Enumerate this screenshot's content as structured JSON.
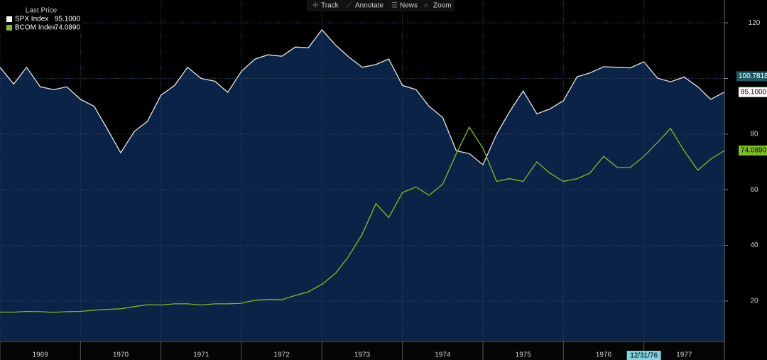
{
  "chart_data": {
    "type": "line",
    "legend_title": "Last Price",
    "toolbar": [
      "Track",
      "Annotate",
      "News",
      "Zoom"
    ],
    "x": [
      1969,
      1969.17,
      1969.33,
      1969.5,
      1969.67,
      1969.83,
      1970,
      1970.17,
      1970.33,
      1970.5,
      1970.67,
      1970.83,
      1971,
      1971.17,
      1971.33,
      1971.5,
      1971.67,
      1971.83,
      1972,
      1972.17,
      1972.33,
      1972.5,
      1972.67,
      1972.83,
      1973,
      1973.17,
      1973.33,
      1973.5,
      1973.67,
      1973.83,
      1974,
      1974.17,
      1974.33,
      1974.5,
      1974.67,
      1974.83,
      1975,
      1975.17,
      1975.33,
      1975.5,
      1975.67,
      1975.83,
      1976,
      1976.17,
      1976.33,
      1976.5,
      1976.67,
      1976.83,
      1977,
      1977.17,
      1977.33,
      1977.5,
      1977.67,
      1977.83,
      1978
    ],
    "xlim": [
      1969,
      1978
    ],
    "xticks": [
      1969,
      1970,
      1971,
      1972,
      1973,
      1974,
      1975,
      1976,
      1977
    ],
    "ylim": [
      5.7,
      128.2
    ],
    "yticks": [
      20,
      40,
      60,
      80,
      100,
      120
    ],
    "grid": true,
    "series": [
      {
        "name": "SPX Index",
        "color": "#e6e6e6",
        "fill": "#0b2346",
        "last_label": "95.1000",
        "values": [
          104,
          98,
          104,
          97,
          96,
          97,
          92.5,
          90,
          82,
          73.3,
          81,
          84.5,
          94,
          97.5,
          104,
          100,
          99,
          95,
          102.6,
          107,
          108.5,
          108,
          111.3,
          111,
          117.5,
          112,
          107.8,
          104,
          105,
          107,
          97.5,
          96,
          90,
          86,
          74,
          73,
          69,
          80,
          88,
          95.5,
          87.3,
          89,
          92,
          100.6,
          102,
          104.2,
          104,
          103.8,
          106,
          100.1,
          98.8,
          100.5,
          97,
          92.5,
          95.1
        ]
      },
      {
        "name": "BCOM Index",
        "color": "#7fbf1f",
        "last_label": "74.0890",
        "values": [
          16,
          16,
          16.3,
          16.2,
          15.9,
          16.2,
          16.3,
          16.7,
          17,
          17.2,
          18,
          18.7,
          18.6,
          19,
          19,
          18.6,
          19,
          19,
          19.2,
          20.3,
          20.6,
          20.5,
          22,
          23.3,
          26,
          30,
          36,
          44,
          55,
          50,
          59,
          61,
          58,
          62,
          73,
          82.5,
          75,
          63,
          64,
          63,
          70,
          66,
          63,
          64,
          66,
          72,
          68,
          68,
          72,
          77,
          82,
          74,
          67,
          71,
          74.089
        ]
      }
    ],
    "annotations": [
      {
        "text": "100.7818",
        "value": 100.7818
      }
    ],
    "x_marker": {
      "value": 1977,
      "label": "12/31/76"
    }
  }
}
